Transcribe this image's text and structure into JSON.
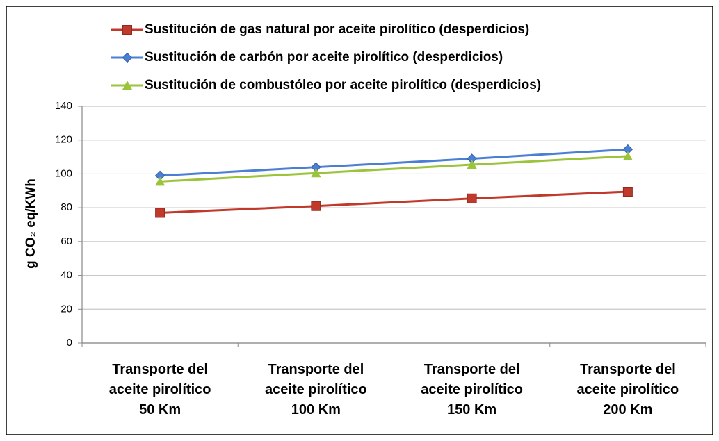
{
  "chart_data": {
    "type": "line",
    "y_label": "g CO₂ eq/KWh",
    "categories": [
      "Transporte del\naceite pirolítico\n50 Km",
      "Transporte del\naceite pirolítico\n100 Km",
      "Transporte del\naceite pirolítico\n150 Km",
      "Transporte del\naceite pirolítico\n200 Km"
    ],
    "series": [
      {
        "name": "Sustitución de gas natural por aceite pirolítico (desperdicios)",
        "color": "#c0392b",
        "marker": "square",
        "values": [
          77,
          81,
          85.5,
          89.5
        ]
      },
      {
        "name": "Sustitución de carbón por aceite pirolítico (desperdicios)",
        "color": "#4a7fd4",
        "marker": "diamond",
        "values": [
          99,
          104,
          109,
          114.5
        ]
      },
      {
        "name": "Sustitución de combustóleo por aceite pirolítico (desperdicios)",
        "color": "#9bc43c",
        "marker": "triangle",
        "values": [
          95.5,
          100.5,
          105.5,
          110.5
        ]
      }
    ],
    "ylim": [
      0,
      140
    ],
    "yticks": [
      0,
      20,
      40,
      60,
      80,
      100,
      120,
      140
    ],
    "grid": true,
    "legend": "top"
  }
}
